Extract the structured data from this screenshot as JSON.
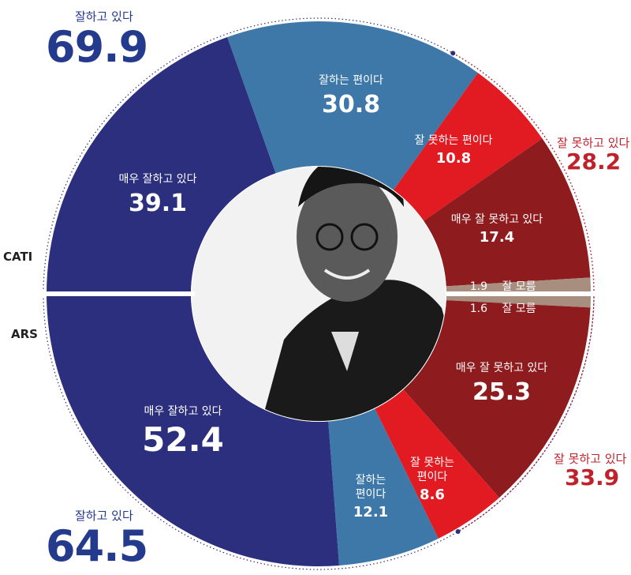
{
  "colors": {
    "navy": "#2b2f7e",
    "steel_blue": "#3e78a8",
    "bright_red": "#e21b23",
    "dark_red": "#8e1b1d",
    "tan": "#a88e7f",
    "blue_text": "#243a8c",
    "red_text": "#c0222b"
  },
  "labels": {
    "cati": "CATI",
    "ars": "ARS"
  },
  "totals": {
    "cati_positive_label": "잘하고 있다",
    "cati_positive_value": "69.9",
    "cati_negative_label": "잘 못하고 있다",
    "cati_negative_value": "28.2",
    "ars_positive_label": "잘하고 있다",
    "ars_positive_value": "64.5",
    "ars_negative_label": "잘 못하고 있다",
    "ars_negative_value": "33.9"
  },
  "center_image": "portrait-photo",
  "chart_data": [
    {
      "type": "pie",
      "name": "CATI",
      "slices": [
        {
          "label": "잘하는 편이다",
          "value": 30.8,
          "color": "#3e78a8"
        },
        {
          "label": "잘 못하는 편이다",
          "value": 10.8,
          "color": "#e21b23"
        },
        {
          "label": "매우 잘 못하고 있다",
          "value": 17.4,
          "color": "#8e1b1d"
        },
        {
          "label": "잘 모름",
          "value": 1.9,
          "color": "#a88e7f"
        },
        {
          "label": "매우 잘하고 있다",
          "value": 39.1,
          "color": "#2b2f7e"
        }
      ]
    },
    {
      "type": "pie",
      "name": "ARS",
      "slices": [
        {
          "label": "잘 모름",
          "value": 1.6,
          "color": "#a88e7f"
        },
        {
          "label": "매우 잘 못하고 있다",
          "value": 25.3,
          "color": "#8e1b1d"
        },
        {
          "label": "잘 못하는 편이다",
          "value": 8.6,
          "color": "#e21b23"
        },
        {
          "label": "잘하는 편이다",
          "value": 12.1,
          "color": "#3e78a8"
        },
        {
          "label": "매우 잘하고 있다",
          "value": 52.4,
          "color": "#2b2f7e"
        }
      ]
    }
  ]
}
